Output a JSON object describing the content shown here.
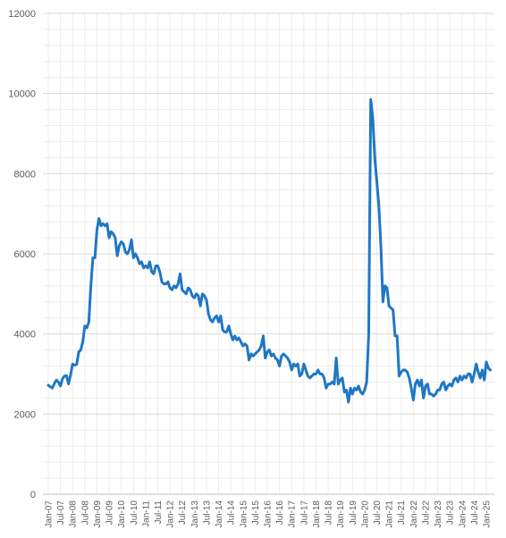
{
  "chart_data": {
    "type": "line",
    "title": "",
    "xlabel": "",
    "ylabel": "",
    "ylim": [
      0,
      12000
    ],
    "yticks": [
      0,
      2000,
      4000,
      6000,
      8000,
      10000,
      12000
    ],
    "xtick_labels": [
      "Jan-07",
      "Jul-07",
      "Jan-08",
      "Jul-08",
      "Jan-09",
      "Jul-09",
      "Jan-10",
      "Jul-10",
      "Jan-11",
      "Jul-11",
      "Jan-12",
      "Jul-12",
      "Jan-13",
      "Jul-13",
      "Jan-14",
      "Jul-14",
      "Jan-15",
      "Jul-15",
      "Jan-16",
      "Jul-16",
      "Jan-17",
      "Jul-17",
      "Jan-18",
      "Jul-18",
      "Jan-19",
      "Jul-19",
      "Jan-20",
      "Jul-20",
      "Jan-21",
      "Jul-21",
      "Jan-22",
      "Jul-22",
      "Jan-23",
      "Jul-23",
      "Jan-24",
      "Jul-24",
      "Jan-25"
    ],
    "grid": true,
    "legend": "none",
    "series_color": "#1f77c4",
    "x_start": "Jan-07",
    "x_step": "month",
    "series": [
      {
        "values": [
          2720,
          2680,
          2650,
          2760,
          2850,
          2800,
          2700,
          2880,
          2950,
          2960,
          2750,
          2980,
          3250,
          3220,
          3240,
          3550,
          3600,
          3800,
          4200,
          4150,
          4300,
          5200,
          5900,
          5900,
          6600,
          6880,
          6700,
          6750,
          6700,
          6750,
          6400,
          6550,
          6500,
          6400,
          5950,
          6200,
          6300,
          6250,
          6050,
          6000,
          6100,
          6350,
          5900,
          6000,
          5900,
          5750,
          5800,
          5650,
          5700,
          5650,
          5800,
          5550,
          5500,
          5700,
          5700,
          5550,
          5300,
          5250,
          5250,
          5300,
          5150,
          5100,
          5200,
          5150,
          5250,
          5500,
          5100,
          5050,
          5000,
          5150,
          5100,
          4950,
          4900,
          5000,
          4950,
          4700,
          5000,
          4950,
          4850,
          4500,
          4350,
          4300,
          4400,
          4450,
          4300,
          4450,
          4100,
          4050,
          4050,
          4200,
          4000,
          3850,
          3950,
          3850,
          3900,
          3800,
          3700,
          3750,
          3700,
          3350,
          3500,
          3450,
          3500,
          3550,
          3600,
          3700,
          3950,
          3400,
          3550,
          3600,
          3450,
          3500,
          3400,
          3350,
          3200,
          3450,
          3500,
          3450,
          3400,
          3300,
          3100,
          3250,
          3200,
          3250,
          2950,
          3000,
          3250,
          3100,
          2950,
          2900,
          2950,
          3000,
          3000,
          3100,
          3000,
          3000,
          2900,
          2650,
          2750,
          2750,
          2800,
          2750,
          3400,
          2750,
          2850,
          2900,
          2550,
          2600,
          2300,
          2650,
          2500,
          2650,
          2600,
          2700,
          2550,
          2500,
          2600,
          2800,
          4000,
          9850,
          9400,
          8400,
          7800,
          7200,
          6200,
          4800,
          5200,
          5150,
          4700,
          4650,
          4600,
          3950,
          3950,
          2950,
          3050,
          3100,
          3100,
          3050,
          2900,
          2650,
          2350,
          2750,
          2850,
          2700,
          2850,
          2400,
          2700,
          2750,
          2500,
          2500,
          2450,
          2500,
          2600,
          2600,
          2750,
          2800,
          2600,
          2700,
          2750,
          2700,
          2850,
          2900,
          2800,
          2950,
          2850,
          2950,
          2900,
          3000,
          3000,
          2800,
          3000,
          3250,
          3050,
          2900,
          3100,
          2850,
          3300,
          3150,
          3100
        ]
      }
    ]
  }
}
